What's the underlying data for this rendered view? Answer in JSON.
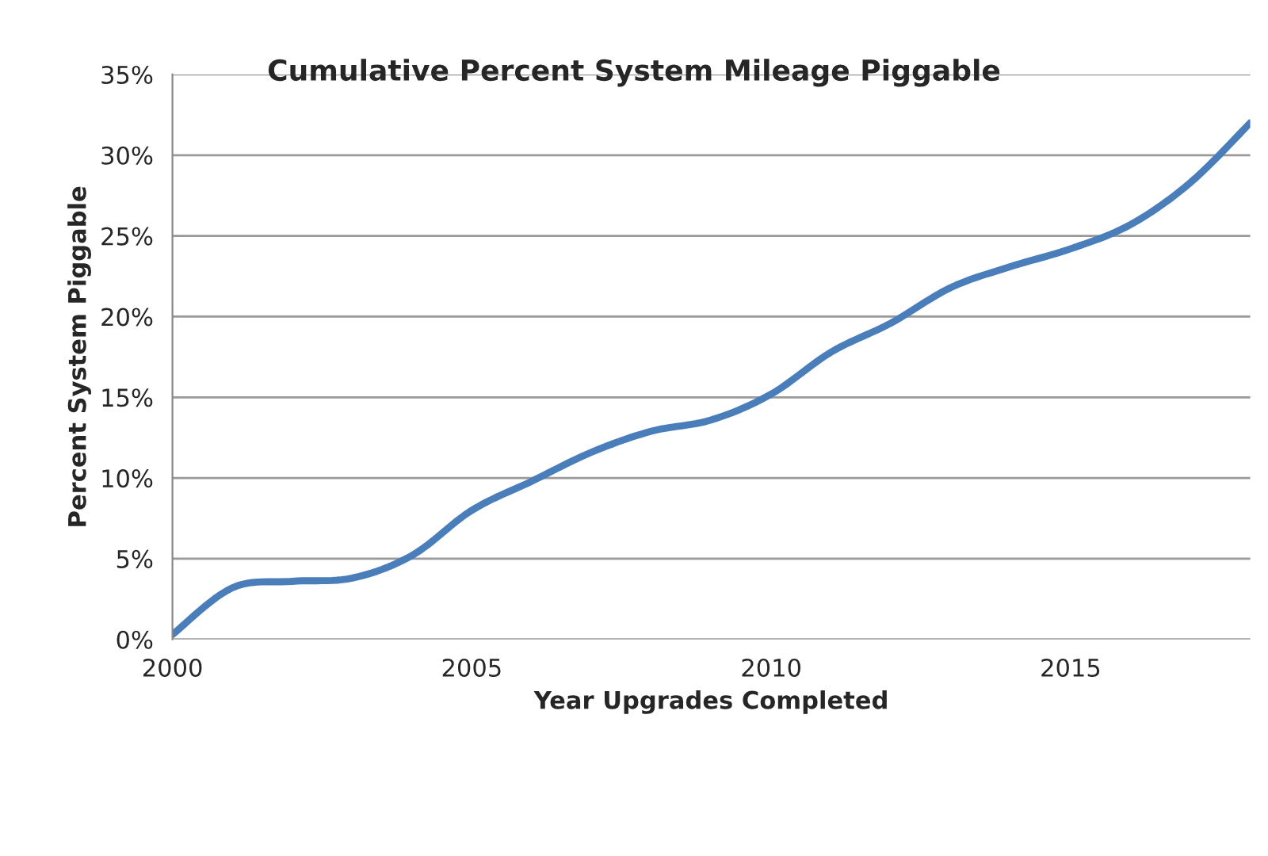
{
  "chart_data": {
    "type": "line",
    "title": "Cumulative Percent System Mileage Piggable",
    "xlabel": "Year Upgrades Completed",
    "ylabel": "Percent System Piggable",
    "x": [
      2000,
      2001,
      2002,
      2003,
      2004,
      2005,
      2006,
      2007,
      2008,
      2009,
      2010,
      2011,
      2012,
      2013,
      2014,
      2015,
      2016,
      2017,
      2018
    ],
    "series": [
      {
        "color": "#4a7ebb",
        "values": [
          0.3,
          3.2,
          3.6,
          3.8,
          5.2,
          8.0,
          9.8,
          11.6,
          12.9,
          13.6,
          15.2,
          17.8,
          19.6,
          21.8,
          23.1,
          24.2,
          25.7,
          28.3,
          32.0
        ]
      }
    ],
    "xlim": [
      2000,
      2018
    ],
    "xticks": [
      2000,
      2005,
      2010,
      2015
    ],
    "ylim": [
      0,
      35
    ],
    "yticks": [
      {
        "value": 0,
        "label": "0%"
      },
      {
        "value": 5,
        "label": "5%"
      },
      {
        "value": 10,
        "label": "10%"
      },
      {
        "value": 15,
        "label": "15%"
      },
      {
        "value": 20,
        "label": "20%"
      },
      {
        "value": 25,
        "label": "25%"
      },
      {
        "value": 30,
        "label": "30%"
      },
      {
        "value": 35,
        "label": "35%"
      }
    ],
    "grid": "y",
    "line_style": "solid",
    "marker": "none"
  }
}
